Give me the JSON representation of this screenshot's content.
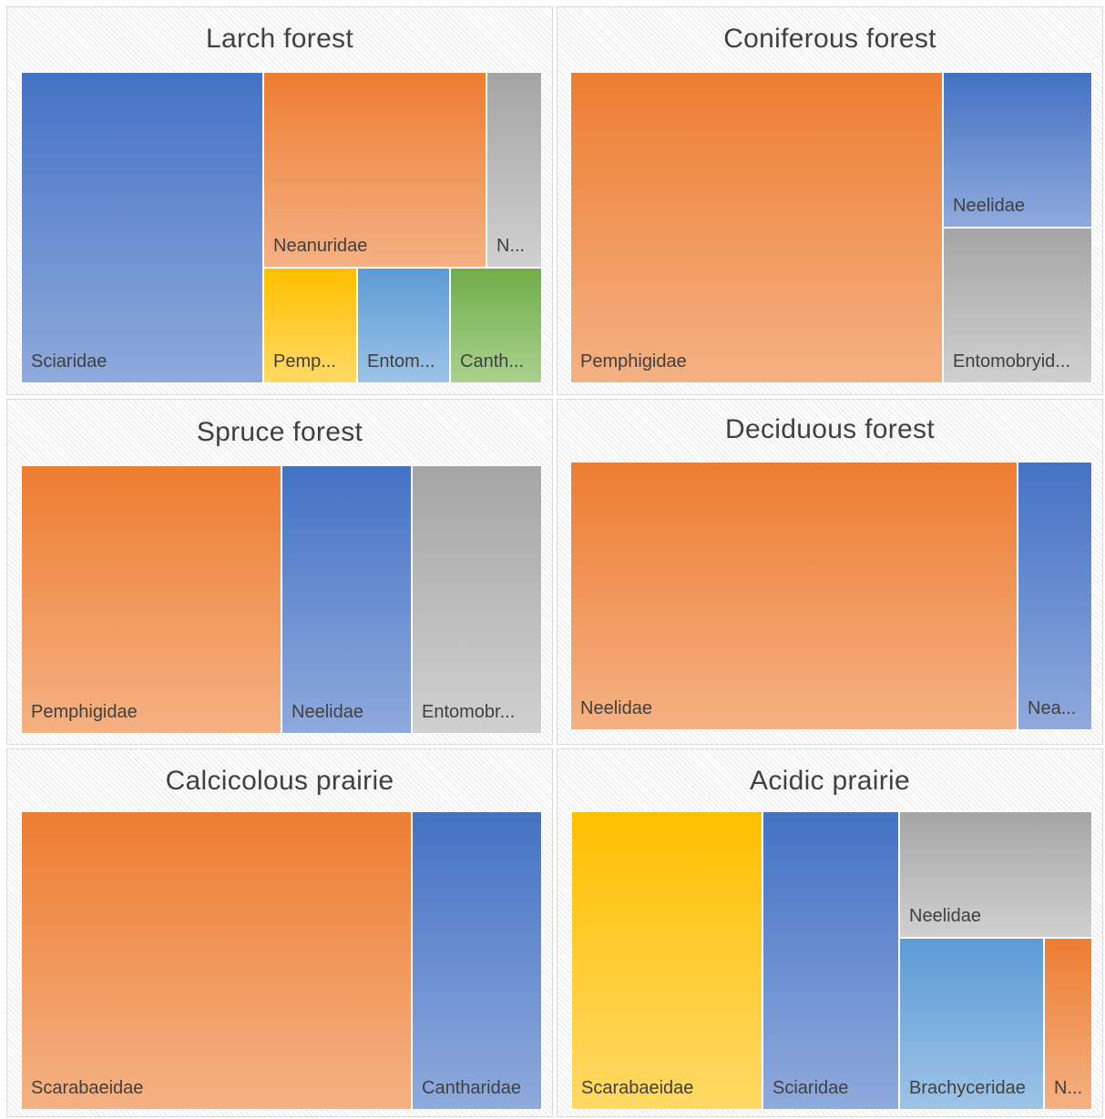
{
  "chart_data": [
    {
      "type": "treemap",
      "title": "Larch forest",
      "items": [
        {
          "label": "Sciaridae",
          "display_label": "Sciaridae",
          "color": "#4472c4"
        },
        {
          "label": "Neanuridae",
          "display_label": "Neanuridae",
          "color": "#ed7d31"
        },
        {
          "label": "N...",
          "display_label": "N...",
          "color": "#a5a5a5"
        },
        {
          "label": "Pemp...",
          "display_label": "Pemp...",
          "color": "#ffc000"
        },
        {
          "label": "Entom...",
          "display_label": "Entom...",
          "color": "#5b9bd5"
        },
        {
          "label": "Canth...",
          "display_label": "Canth...",
          "color": "#70ad47"
        }
      ]
    },
    {
      "type": "treemap",
      "title": "Coniferous forest",
      "items": [
        {
          "label": "Pemphigidae",
          "display_label": "Pemphigidae",
          "color": "#ed7d31"
        },
        {
          "label": "Neelidae",
          "display_label": "Neelidae",
          "color": "#4472c4"
        },
        {
          "label": "Entomobryid...",
          "display_label": "Entomobryid...",
          "color": "#a5a5a5"
        }
      ]
    },
    {
      "type": "treemap",
      "title": "Spruce forest",
      "items": [
        {
          "label": "Pemphigidae",
          "display_label": "Pemphigidae",
          "color": "#ed7d31"
        },
        {
          "label": "Neelidae",
          "display_label": "Neelidae",
          "color": "#4472c4"
        },
        {
          "label": "Entomobr...",
          "display_label": "Entomobr...",
          "color": "#a5a5a5"
        }
      ]
    },
    {
      "type": "treemap",
      "title": "Deciduous forest",
      "items": [
        {
          "label": "Neelidae",
          "display_label": "Neelidae",
          "color": "#ed7d31"
        },
        {
          "label": "Nea...",
          "display_label": "Nea...",
          "color": "#4472c4"
        }
      ]
    },
    {
      "type": "treemap",
      "title": "Calcicolous prairie",
      "items": [
        {
          "label": "Scarabaeidae",
          "display_label": "Scarabaeidae",
          "color": "#ed7d31"
        },
        {
          "label": "Cantharidae",
          "display_label": "Cantharidae",
          "color": "#4472c4"
        }
      ]
    },
    {
      "type": "treemap",
      "title": "Acidic prairie",
      "items": [
        {
          "label": "Scarabaeidae",
          "display_label": "Scarabaeidae",
          "color": "#ffc000"
        },
        {
          "label": "Sciaridae",
          "display_label": "Sciaridae",
          "color": "#4472c4"
        },
        {
          "label": "Neelidae",
          "display_label": "Neelidae",
          "color": "#a5a5a5"
        },
        {
          "label": "Brachyceridae",
          "display_label": "Brachyceridae",
          "color": "#5b9bd5"
        },
        {
          "label": "N...",
          "display_label": "N...",
          "color": "#ed7d31"
        }
      ]
    }
  ]
}
